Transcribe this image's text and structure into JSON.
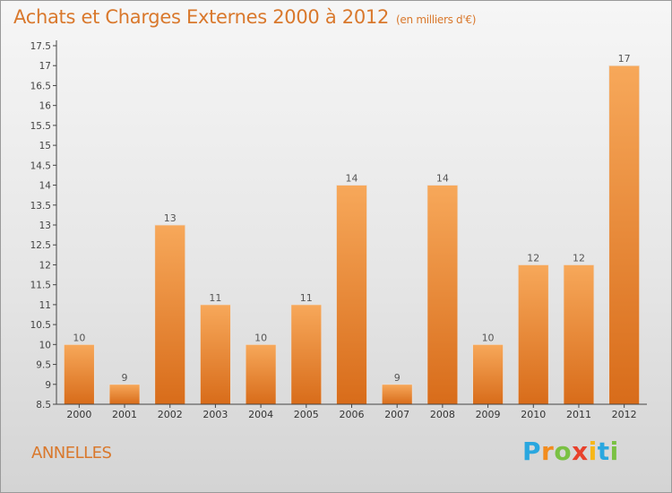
{
  "title": "Achats et Charges Externes 2000 à 2012",
  "subtitle": "(en milliers d'€)",
  "commune": "ANNELLES",
  "logo": {
    "letters": [
      "P",
      "r",
      "o",
      "x",
      "i",
      "t",
      "i"
    ],
    "colors": [
      "#2aa7df",
      "#f28c1e",
      "#7ac143",
      "#e8412c",
      "#f7b718",
      "#2aa7df",
      "#7ac143"
    ]
  },
  "colors": {
    "bar_light": "#f7a85a",
    "bar_dark": "#d86c1a",
    "title": "#d9782c"
  },
  "chart_data": {
    "type": "bar",
    "categories": [
      "2000",
      "2001",
      "2002",
      "2003",
      "2004",
      "2005",
      "2006",
      "2007",
      "2008",
      "2009",
      "2010",
      "2011",
      "2012"
    ],
    "values": [
      10,
      9,
      13,
      11,
      10,
      11,
      14,
      9,
      14,
      10,
      12,
      12,
      17
    ],
    "data_labels": [
      "10",
      "9",
      "13",
      "11",
      "10",
      "11",
      "14",
      "9",
      "14",
      "10",
      "12",
      "12",
      "17"
    ],
    "ylim": [
      8.5,
      17.5
    ],
    "yticks": [
      "8.5",
      "9",
      "9.5",
      "10",
      "10.5",
      "11",
      "11.5",
      "12",
      "12.5",
      "13",
      "13.5",
      "14",
      "14.5",
      "15",
      "15.5",
      "16",
      "16.5",
      "17",
      "17.5"
    ],
    "grid": false
  }
}
